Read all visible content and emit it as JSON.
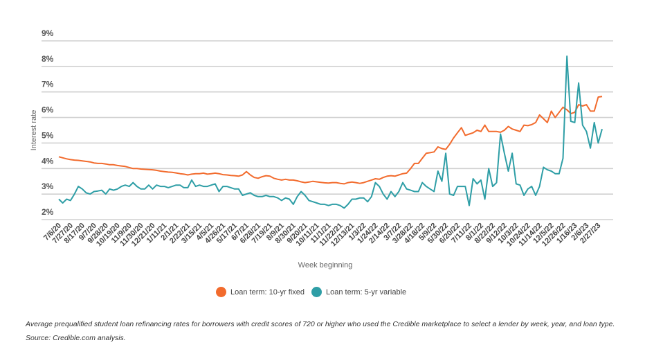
{
  "chart_data": {
    "type": "line",
    "xlabel": "Week beginning",
    "ylabel": "Interest rate",
    "ylim": [
      2,
      9
    ],
    "yticks": [
      "2%",
      "3%",
      "4%",
      "5%",
      "6%",
      "7%",
      "8%",
      "9%"
    ],
    "grid": true,
    "legend_placement": "bottom",
    "x": [
      "7/6/20",
      "7/13/20",
      "7/20/20",
      "7/27/20",
      "8/3/20",
      "8/10/20",
      "8/17/20",
      "8/24/20",
      "8/31/20",
      "9/7/20",
      "9/14/20",
      "9/21/20",
      "9/28/20",
      "10/5/20",
      "10/12/20",
      "10/19/20",
      "10/26/20",
      "11/2/20",
      "11/9/20",
      "11/16/20",
      "11/23/20",
      "11/30/20",
      "12/7/20",
      "12/14/20",
      "12/21/20",
      "12/28/20",
      "1/4/21",
      "1/11/21",
      "1/18/21",
      "1/25/21",
      "2/1/21",
      "2/8/21",
      "2/15/21",
      "2/22/21",
      "3/1/21",
      "3/8/21",
      "3/15/21",
      "3/22/21",
      "3/29/21",
      "4/5/21",
      "4/12/21",
      "4/19/21",
      "4/26/21",
      "5/3/21",
      "5/10/21",
      "5/17/21",
      "5/24/21",
      "5/31/21",
      "6/7/21",
      "6/14/21",
      "6/21/21",
      "6/28/21",
      "7/5/21",
      "7/12/21",
      "7/19/21",
      "7/26/21",
      "8/2/21",
      "8/9/21",
      "8/16/21",
      "8/23/21",
      "8/30/21",
      "9/6/21",
      "9/13/21",
      "9/20/21",
      "9/27/21",
      "10/4/21",
      "10/11/21",
      "10/18/21",
      "10/25/21",
      "11/1/21",
      "11/8/21",
      "11/15/21",
      "11/22/21",
      "11/29/21",
      "12/6/21",
      "12/13/21",
      "12/20/21",
      "12/27/21",
      "1/3/22",
      "1/10/22",
      "1/17/22",
      "1/24/22",
      "1/31/22",
      "2/7/22",
      "2/14/22",
      "2/21/22",
      "2/28/22",
      "3/7/22",
      "3/14/22",
      "3/21/22",
      "3/28/22",
      "4/4/22",
      "4/11/22",
      "4/18/22",
      "4/25/22",
      "5/2/22",
      "5/9/22",
      "5/16/22",
      "5/23/22",
      "5/30/22",
      "6/6/22",
      "6/13/22",
      "6/20/22",
      "6/27/22",
      "7/4/22",
      "7/11/22",
      "7/18/22",
      "7/25/22",
      "8/1/22",
      "8/8/22",
      "8/15/22",
      "8/22/22",
      "8/29/22",
      "9/5/22",
      "9/12/22",
      "9/19/22",
      "9/26/22",
      "10/3/22",
      "10/10/22",
      "10/17/22",
      "10/24/22",
      "10/31/22",
      "11/7/22",
      "11/14/22",
      "11/21/22",
      "11/28/22",
      "12/5/22",
      "12/12/22",
      "12/19/22",
      "12/26/22",
      "1/2/23",
      "1/9/23",
      "1/16/23",
      "1/23/23",
      "1/30/23",
      "2/6/23",
      "2/13/23",
      "2/20/23",
      "2/27/23",
      "3/6/23"
    ],
    "x_tick_labels": [
      "7/6/20",
      "7/27/20",
      "8/17/20",
      "9/7/20",
      "9/28/20",
      "10/19/20",
      "11/9/20",
      "11/30/20",
      "12/21/20",
      "1/11/21",
      "2/1/21",
      "2/22/21",
      "3/15/21",
      "4/5/21",
      "4/26/21",
      "5/17/21",
      "6/7/21",
      "6/28/21",
      "7/19/21",
      "8/9/21",
      "8/30/21",
      "9/20/21",
      "10/11/21",
      "11/1/21",
      "11/22/21",
      "12/13/21",
      "1/3/22",
      "1/24/22",
      "2/14/22",
      "3/7/22",
      "3/28/22",
      "4/18/22",
      "5/9/22",
      "5/30/22",
      "6/20/22",
      "7/11/22",
      "8/1/22",
      "8/22/22",
      "9/12/22",
      "10/3/22",
      "10/24/22",
      "11/14/22",
      "12/5/22",
      "12/26/22",
      "1/16/23",
      "2/6/23",
      "2/27/23"
    ],
    "series": [
      {
        "name": "Loan term: 10-yr fixed",
        "color": "#f26b2d",
        "values": [
          4.46,
          4.42,
          4.38,
          4.35,
          4.33,
          4.32,
          4.3,
          4.28,
          4.26,
          4.22,
          4.2,
          4.2,
          4.18,
          4.15,
          4.15,
          4.12,
          4.1,
          4.08,
          4.04,
          4.0,
          4.0,
          3.98,
          3.97,
          3.96,
          3.95,
          3.93,
          3.9,
          3.88,
          3.86,
          3.85,
          3.83,
          3.8,
          3.78,
          3.75,
          3.78,
          3.8,
          3.8,
          3.82,
          3.78,
          3.8,
          3.82,
          3.8,
          3.76,
          3.75,
          3.73,
          3.72,
          3.7,
          3.75,
          3.88,
          3.75,
          3.65,
          3.62,
          3.68,
          3.72,
          3.7,
          3.62,
          3.58,
          3.55,
          3.58,
          3.55,
          3.55,
          3.52,
          3.48,
          3.45,
          3.47,
          3.5,
          3.48,
          3.46,
          3.44,
          3.43,
          3.45,
          3.45,
          3.42,
          3.4,
          3.45,
          3.47,
          3.45,
          3.42,
          3.45,
          3.5,
          3.55,
          3.6,
          3.58,
          3.65,
          3.7,
          3.72,
          3.7,
          3.75,
          3.8,
          3.82,
          4.0,
          4.2,
          4.2,
          4.4,
          4.6,
          4.62,
          4.65,
          4.85,
          4.78,
          4.75,
          4.95,
          5.2,
          5.4,
          5.6,
          5.3,
          5.35,
          5.4,
          5.5,
          5.45,
          5.7,
          5.45,
          5.45,
          5.45,
          5.42,
          5.5,
          5.65,
          5.55,
          5.5,
          5.45,
          5.7,
          5.68,
          5.72,
          5.8,
          6.1,
          5.95,
          5.8,
          6.25,
          6.0,
          6.2,
          6.4,
          6.3,
          6.15,
          6.2,
          6.5,
          6.45,
          6.5,
          6.25,
          6.25,
          6.8,
          6.82
        ]
      },
      {
        "name": "Loan term: 5-yr variable",
        "color": "#2e9ea6",
        "values": [
          2.8,
          2.65,
          2.8,
          2.75,
          3.0,
          3.3,
          3.2,
          3.05,
          3.0,
          3.1,
          3.12,
          3.15,
          3.0,
          3.2,
          3.15,
          3.2,
          3.3,
          3.35,
          3.3,
          3.45,
          3.3,
          3.2,
          3.2,
          3.35,
          3.2,
          3.35,
          3.3,
          3.3,
          3.25,
          3.3,
          3.35,
          3.35,
          3.25,
          3.25,
          3.55,
          3.3,
          3.35,
          3.3,
          3.3,
          3.35,
          3.4,
          3.1,
          3.3,
          3.3,
          3.25,
          3.2,
          3.2,
          2.95,
          3.0,
          3.05,
          2.95,
          2.9,
          2.9,
          2.95,
          2.9,
          2.9,
          2.85,
          2.75,
          2.85,
          2.8,
          2.6,
          2.9,
          3.1,
          2.95,
          2.75,
          2.7,
          2.65,
          2.6,
          2.6,
          2.55,
          2.6,
          2.6,
          2.55,
          2.45,
          2.6,
          2.8,
          2.8,
          2.85,
          2.85,
          2.7,
          2.9,
          3.45,
          3.3,
          3.0,
          2.8,
          3.1,
          2.9,
          3.1,
          3.45,
          3.2,
          3.15,
          3.1,
          3.1,
          3.45,
          3.3,
          3.2,
          3.1,
          3.9,
          3.5,
          4.6,
          3.0,
          2.95,
          3.3,
          3.3,
          3.3,
          2.55,
          3.6,
          3.4,
          3.55,
          2.8,
          4.0,
          3.3,
          3.45,
          5.35,
          4.6,
          3.9,
          4.6,
          3.4,
          3.35,
          2.95,
          3.2,
          3.3,
          2.95,
          3.3,
          4.05,
          3.95,
          3.9,
          3.8,
          3.8,
          4.4,
          8.4,
          5.85,
          5.8,
          7.35,
          5.7,
          5.45,
          4.8,
          5.8,
          5.0,
          5.55
        ]
      }
    ],
    "caption": "Average prequalified student loan refinancing rates for borrowers with credit scores of 720 or higher who used the Credible marketplace to select a lender by week, year, and loan type. Source: Credible.com analysis."
  }
}
